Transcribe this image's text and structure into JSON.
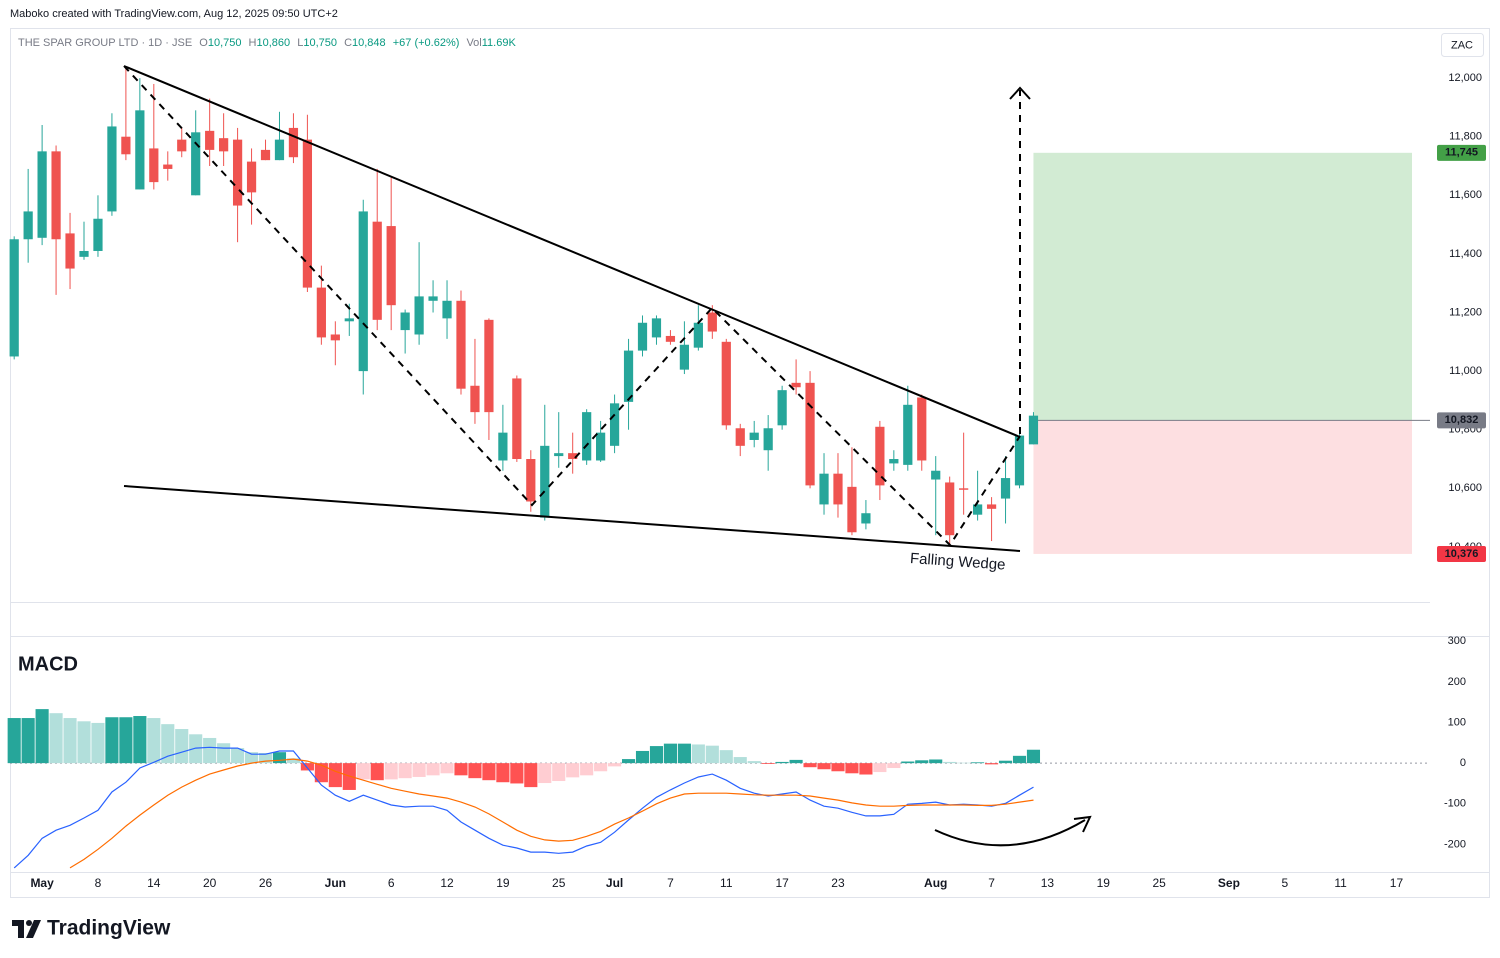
{
  "header": {
    "credit": "Maboko created with TradingView.com, Aug 12, 2025 09:50 UTC+2",
    "symbol": "THE SPAR GROUP LTD · 1D · JSE",
    "ohlc": [
      {
        "key": "O",
        "value": "10,750"
      },
      {
        "key": "H",
        "value": "10,860"
      },
      {
        "key": "L",
        "value": "10,750"
      },
      {
        "key": "C",
        "value": "10,848"
      }
    ],
    "change": "+67 (+0.62%)",
    "volume": {
      "key": "Vol",
      "value": "11.69K"
    },
    "brand": "TradingView"
  },
  "chart_data": [
    {
      "type": "candlestick",
      "currency": "ZAC",
      "up_color": "#26a69a",
      "down_color": "#ef5350",
      "series": {
        "open": [
          11050,
          11450,
          11455,
          11750,
          11470,
          11390,
          11410,
          11545,
          11800,
          11620,
          11760,
          11705,
          11790,
          11600,
          11820,
          11795,
          11790,
          11715,
          11755,
          11720,
          11830,
          11790,
          11285,
          11125,
          11170,
          11000,
          11510,
          11495,
          11140,
          11125,
          11240,
          11180,
          11240,
          10950,
          11175,
          10695,
          10975,
          10700,
          10500,
          10710,
          10720,
          10695,
          10695,
          10745,
          10895,
          11070,
          11115,
          11120,
          11005,
          11080,
          11200,
          11100,
          10805,
          10765,
          10730,
          10815,
          10960,
          10960,
          10545,
          10650,
          10605,
          10480,
          10810,
          10685,
          10680,
          10910,
          10630,
          10620,
          10600,
          10510,
          10545,
          10565,
          10610,
          10750
        ],
        "high": [
          11460,
          11690,
          11840,
          11770,
          11540,
          11510,
          11600,
          11880,
          12040,
          12000,
          11980,
          11750,
          11830,
          11890,
          11930,
          11880,
          11830,
          11760,
          11790,
          11885,
          11880,
          11875,
          11360,
          11170,
          11230,
          11585,
          11690,
          11660,
          11210,
          11440,
          11310,
          11310,
          11275,
          11110,
          11180,
          10885,
          10985,
          10730,
          10885,
          10860,
          10790,
          10870,
          10830,
          10920,
          11110,
          11190,
          11190,
          11140,
          11170,
          11225,
          11225,
          11110,
          10820,
          10830,
          10850,
          10950,
          11040,
          11000,
          10720,
          10720,
          10740,
          10560,
          10830,
          10730,
          10950,
          10920,
          10710,
          10640,
          10790,
          10660,
          10570,
          10710,
          10790,
          10860
        ],
        "low": [
          11040,
          11370,
          11430,
          11260,
          11280,
          11380,
          11390,
          11530,
          11720,
          11620,
          11620,
          11650,
          11730,
          11600,
          11700,
          11700,
          11440,
          11500,
          11720,
          11720,
          11710,
          11270,
          11090,
          11020,
          11120,
          10920,
          11140,
          11140,
          11060,
          11090,
          11200,
          11110,
          10920,
          10820,
          10765,
          10660,
          10690,
          10520,
          10490,
          10670,
          10650,
          10680,
          10690,
          10720,
          10800,
          11050,
          11090,
          11090,
          10990,
          11070,
          11110,
          10800,
          10710,
          10740,
          10660,
          10800,
          10920,
          10600,
          10510,
          10500,
          10440,
          10460,
          10560,
          10660,
          10660,
          10660,
          10440,
          10405,
          10510,
          10490,
          10420,
          10480,
          10600,
          10750
        ],
        "close": [
          11450,
          11545,
          11750,
          11450,
          11350,
          11410,
          11520,
          11835,
          11740,
          11890,
          11645,
          11690,
          11750,
          11815,
          11755,
          11750,
          11565,
          11610,
          11720,
          11790,
          11730,
          11285,
          11115,
          11105,
          11180,
          11545,
          11175,
          11225,
          11200,
          11255,
          11255,
          11240,
          10940,
          10860,
          10860,
          10790,
          10700,
          10555,
          10745,
          10720,
          10700,
          10860,
          10790,
          10890,
          11070,
          11165,
          11180,
          11100,
          11090,
          11165,
          11135,
          10815,
          10745,
          10790,
          10805,
          10935,
          10945,
          10610,
          10650,
          10545,
          10450,
          10515,
          10610,
          10700,
          10885,
          10695,
          10660,
          10440,
          10595,
          10545,
          10530,
          10635,
          10780,
          10848
        ]
      },
      "xlim": [
        -0.3,
        101.4
      ],
      "xticks": [
        {
          "value": 2,
          "label": "May"
        },
        {
          "value": 6,
          "label": "8"
        },
        {
          "value": 10,
          "label": "14"
        },
        {
          "value": 14,
          "label": "20"
        },
        {
          "value": 18,
          "label": "26"
        },
        {
          "value": 23,
          "label": "Jun"
        },
        {
          "value": 27,
          "label": "6"
        },
        {
          "value": 31,
          "label": "12"
        },
        {
          "value": 35,
          "label": "19"
        },
        {
          "value": 39,
          "label": "25"
        },
        {
          "value": 43,
          "label": "Jul"
        },
        {
          "value": 47,
          "label": "7"
        },
        {
          "value": 51,
          "label": "11"
        },
        {
          "value": 55,
          "label": "17"
        },
        {
          "value": 59,
          "label": "23"
        },
        {
          "value": 66,
          "label": "Aug"
        },
        {
          "value": 70,
          "label": "7"
        },
        {
          "value": 74,
          "label": "13"
        },
        {
          "value": 78,
          "label": "19"
        },
        {
          "value": 82,
          "label": "25"
        },
        {
          "value": 87,
          "label": "Sep"
        },
        {
          "value": 91,
          "label": "5"
        },
        {
          "value": 95,
          "label": "11"
        },
        {
          "value": 99,
          "label": "17"
        }
      ],
      "ylim": [
        10212,
        12171
      ],
      "yticks": [
        {
          "value": 12000,
          "label": "12,000"
        },
        {
          "value": 11800,
          "label": "11,800"
        },
        {
          "value": 11600,
          "label": "11,600"
        },
        {
          "value": 11400,
          "label": "11,400"
        },
        {
          "value": 11200,
          "label": "11,200"
        },
        {
          "value": 11000,
          "label": "11,000"
        },
        {
          "value": 10800,
          "label": "10,800"
        },
        {
          "value": 10600,
          "label": "10,600"
        },
        {
          "value": 10400,
          "label": "10,400"
        }
      ],
      "position": {
        "target": {
          "value": 11745,
          "label": "11,745"
        },
        "entry": {
          "value": 10832,
          "label": "10,832"
        },
        "stop": {
          "value": 10376,
          "label": "10,376"
        }
      },
      "annotation": "Falling Wedge"
    },
    {
      "type": "macd",
      "title": "MACD",
      "histogram": {
        "values": [
          111,
          111,
          133,
          123,
          111,
          103,
          99,
          113,
          113,
          116,
          111,
          96,
          84,
          71,
          62,
          49,
          37,
          27,
          25,
          27,
          12,
          -18,
          -47,
          -59,
          -66,
          -40,
          -42,
          -40,
          -37,
          -34,
          -30,
          -25,
          -30,
          -37,
          -42,
          -47,
          -50,
          -59,
          -49,
          -44,
          -35,
          -30,
          -20,
          -8,
          10,
          30,
          42,
          48,
          48,
          46,
          43,
          32,
          15,
          5,
          -2,
          3,
          8,
          -10,
          -15,
          -20,
          -25,
          -28,
          -22,
          -12,
          4,
          7,
          9,
          3,
          1,
          2,
          -3,
          6,
          18,
          33
        ],
        "colors": {
          "grow_above": "#26a69a",
          "fall_above": "#b2dfdb",
          "grow_below": "#ff5252",
          "fall_below": "#ffcdd2"
        }
      },
      "series": [
        {
          "color": "#2962ff",
          "values": [
            -258,
            -227,
            -185,
            -165,
            -153,
            -135,
            -116,
            -71,
            -47,
            -12,
            2,
            17,
            27,
            37,
            39,
            37,
            37,
            22,
            22,
            30,
            30,
            -12,
            -54,
            -79,
            -94,
            -79,
            -91,
            -103,
            -108,
            -106,
            -106,
            -116,
            -145,
            -165,
            -185,
            -202,
            -209,
            -219,
            -219,
            -222,
            -219,
            -204,
            -195,
            -170,
            -140,
            -111,
            -84,
            -66,
            -49,
            -34,
            -27,
            -42,
            -62,
            -74,
            -81,
            -76,
            -71,
            -91,
            -106,
            -111,
            -121,
            -130,
            -130,
            -126,
            -101,
            -99,
            -96,
            -103,
            -101,
            -103,
            -106,
            -99,
            -79,
            -59
          ]
        },
        {
          "color": "#ff6d00",
          "values": [
            null,
            null,
            null,
            null,
            -258,
            -237,
            -212,
            -185,
            -155,
            -128,
            -103,
            -79,
            -59,
            -42,
            -27,
            -17,
            -7,
            0,
            5,
            7,
            10,
            5,
            -5,
            -20,
            -32,
            -42,
            -52,
            -62,
            -69,
            -76,
            -81,
            -86,
            -96,
            -108,
            -125,
            -145,
            -165,
            -180,
            -189,
            -192,
            -190,
            -180,
            -168,
            -150,
            -135,
            -118,
            -100,
            -86,
            -76,
            -74,
            -74,
            -74,
            -76,
            -78,
            -79,
            -79,
            -79,
            -81,
            -86,
            -91,
            -98,
            -103,
            -106,
            -106,
            -104,
            -103,
            -103,
            -103,
            -103,
            -104,
            -104,
            -101,
            -96,
            -91
          ]
        }
      ],
      "ylim": [
        -268,
        313
      ],
      "yticks": [
        300,
        200,
        100,
        0,
        -100,
        -200
      ]
    }
  ]
}
